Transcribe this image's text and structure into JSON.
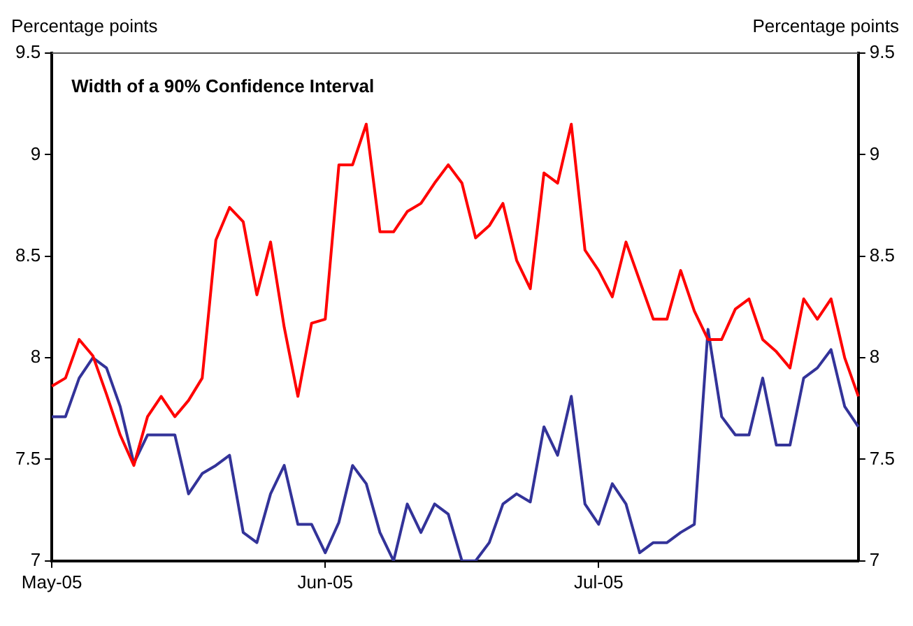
{
  "chart_data": {
    "type": "line",
    "title": "Width of a 90% Confidence Interval",
    "ylabel": "Percentage points",
    "y2label": "Percentage points",
    "categories": [
      "May-05",
      null,
      null,
      null,
      null,
      null,
      null,
      null,
      null,
      null,
      null,
      null,
      null,
      null,
      null,
      null,
      null,
      null,
      null,
      null,
      "Jun-05",
      null,
      null,
      null,
      null,
      null,
      null,
      null,
      null,
      null,
      null,
      null,
      null,
      null,
      null,
      null,
      null,
      null,
      null,
      null,
      "Jul-05",
      null,
      null,
      null,
      null,
      null,
      null,
      null,
      null,
      null,
      null,
      null,
      null,
      null,
      null,
      null,
      null,
      null,
      null,
      null
    ],
    "series": [
      {
        "color": "#ff0000",
        "values": [
          7.86,
          7.9,
          8.09,
          8.01,
          7.82,
          7.62,
          7.47,
          7.71,
          7.81,
          7.71,
          7.79,
          7.9,
          8.58,
          8.74,
          8.67,
          8.31,
          8.57,
          8.15,
          7.81,
          8.17,
          8.19,
          8.95,
          8.95,
          9.15,
          8.62,
          8.62,
          8.72,
          8.76,
          8.86,
          8.95,
          8.86,
          8.59,
          8.65,
          8.76,
          8.48,
          8.34,
          8.91,
          8.86,
          9.15,
          8.53,
          8.43,
          8.3,
          8.57,
          8.38,
          8.19,
          8.19,
          8.43,
          8.23,
          8.09,
          8.09,
          8.24,
          8.29,
          8.09,
          8.03,
          7.95,
          8.29,
          8.19,
          8.29,
          8.0,
          7.81
        ]
      },
      {
        "color": "#333399",
        "values": [
          7.71,
          7.71,
          7.9,
          8.0,
          7.95,
          7.76,
          7.48,
          7.62,
          7.62,
          7.62,
          7.33,
          7.43,
          7.47,
          7.52,
          7.14,
          7.09,
          7.33,
          7.47,
          7.18,
          7.18,
          7.04,
          7.19,
          7.47,
          7.38,
          7.14,
          7.0,
          7.28,
          7.14,
          7.28,
          7.23,
          7.0,
          7.0,
          7.09,
          7.28,
          7.33,
          7.29,
          7.66,
          7.52,
          7.81,
          7.28,
          7.18,
          7.38,
          7.28,
          7.04,
          7.09,
          7.09,
          7.14,
          7.18,
          8.14,
          7.71,
          7.62,
          7.62,
          7.9,
          7.57,
          7.57,
          7.9,
          7.95,
          8.04,
          7.76,
          7.66
        ]
      }
    ],
    "ylim": [
      7,
      9.5
    ],
    "yticks": [
      7,
      7.5,
      8,
      8.5,
      9,
      9.5
    ],
    "y2lim": [
      7,
      9.5
    ],
    "y2ticks": [
      7,
      7.5,
      8,
      8.5,
      9,
      9.5
    ],
    "grid": false,
    "legend": false,
    "marker": "none",
    "line_style": "solid"
  }
}
